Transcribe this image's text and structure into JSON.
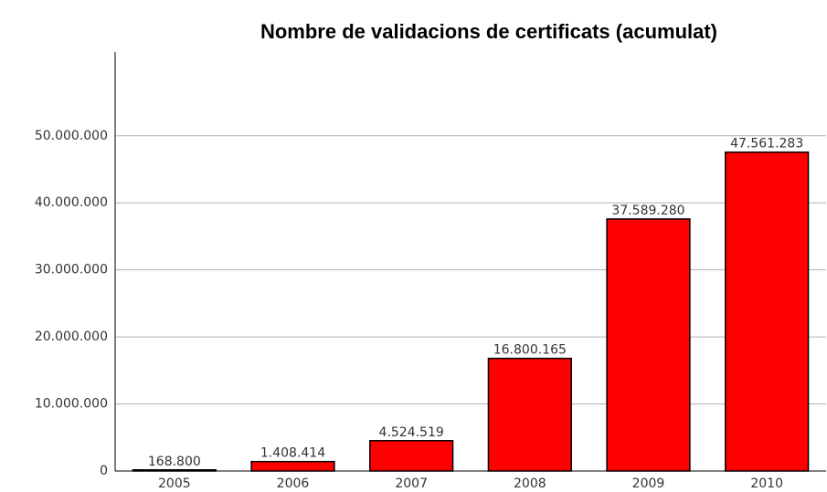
{
  "chart_data": {
    "type": "bar",
    "title": "Nombre de validacions de certificats (acumulat)",
    "categories": [
      "2005",
      "2006",
      "2007",
      "2008",
      "2009",
      "2010"
    ],
    "values": [
      168800,
      1408414,
      4524519,
      16800165,
      37589280,
      47561283
    ],
    "value_labels": [
      "168.800",
      "1.408.414",
      "4.524.519",
      "16.800.165",
      "37.589.280",
      "47.561.283"
    ],
    "color": "#ff0000",
    "ylim": [
      0,
      62500000
    ],
    "yticks": [
      0,
      {
        "value": 10000000,
        "label": "10.000.000"
      },
      {
        "value": 20000000,
        "label": "20.000.000"
      },
      {
        "value": 30000000,
        "label": "30.000.000"
      },
      {
        "value": 40000000,
        "label": "40.000.000"
      },
      {
        "value": 50000000,
        "label": "50.000.000"
      }
    ],
    "grid": true
  }
}
